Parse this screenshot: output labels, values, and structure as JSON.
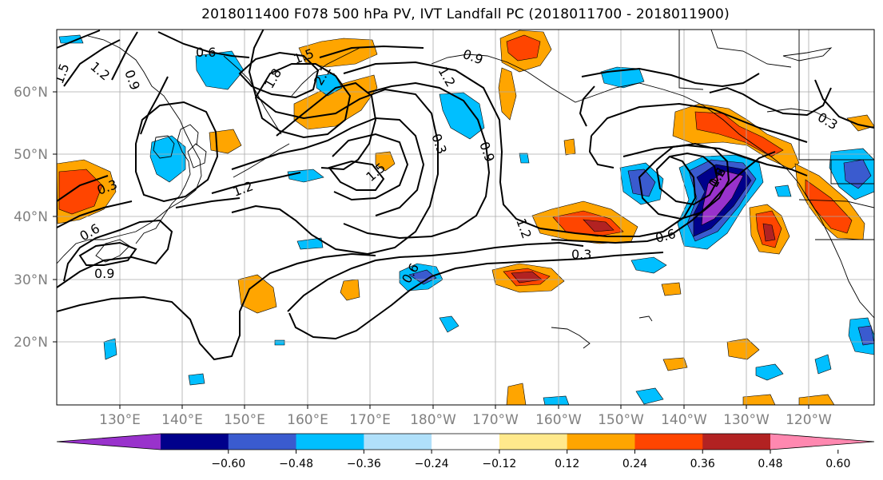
{
  "title": "2018011400 F078 500 hPa PV, IVT Landfall PC (2018011700 - 2018011900)",
  "lat_labels": [
    "60°N",
    "50°N",
    "40°N",
    "30°N",
    "20°N"
  ],
  "lon_labels": [
    "130°E",
    "140°E",
    "150°E",
    "160°E",
    "170°E",
    "180°W",
    "170°W",
    "160°W",
    "150°W",
    "140°W",
    "130°W",
    "120°W"
  ],
  "colorbar": {
    "ticks": [
      "−0.60",
      "−0.48",
      "−0.36",
      "−0.24",
      "−0.12",
      "0.12",
      "0.24",
      "0.36",
      "0.48",
      "0.60"
    ],
    "colors": [
      "#9932cc",
      "#00008b",
      "#3a5bcf",
      "#00bfff",
      "#b0e0fa",
      "#ffffff",
      "#ffe98c",
      "#ffa500",
      "#ff4500",
      "#b22222",
      "#ff88b0"
    ]
  },
  "contour_labels": [
    "0.6",
    "1.2",
    "1.5",
    "0.9",
    "1.5",
    "1.8",
    "2.1",
    "0.9",
    "1.2",
    "0.3",
    "0.9",
    "1.2",
    "1.5",
    "0.3",
    "0.6",
    "0.9",
    "1.2",
    "0.6",
    "0.3",
    "0.3",
    "0.6",
    "1.2",
    "0.6"
  ]
}
